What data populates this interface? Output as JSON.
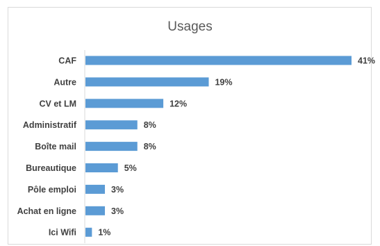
{
  "chart_data": {
    "type": "bar",
    "orientation": "horizontal",
    "title": "Usages",
    "categories": [
      "CAF",
      "Autre",
      "CV et LM",
      "Administratif",
      "Boîte mail",
      "Bureautique",
      "Pôle emploi",
      "Achat en ligne",
      "Ici Wifi"
    ],
    "values": [
      41,
      19,
      12,
      8,
      8,
      5,
      3,
      3,
      1
    ],
    "value_labels": [
      "41%",
      "19%",
      "12%",
      "8%",
      "8%",
      "5%",
      "3%",
      "3%",
      "1%"
    ],
    "unit": "%",
    "xlim": [
      0,
      41
    ],
    "grid": false,
    "legend": "none",
    "bar_color": "#5b9bd5"
  }
}
